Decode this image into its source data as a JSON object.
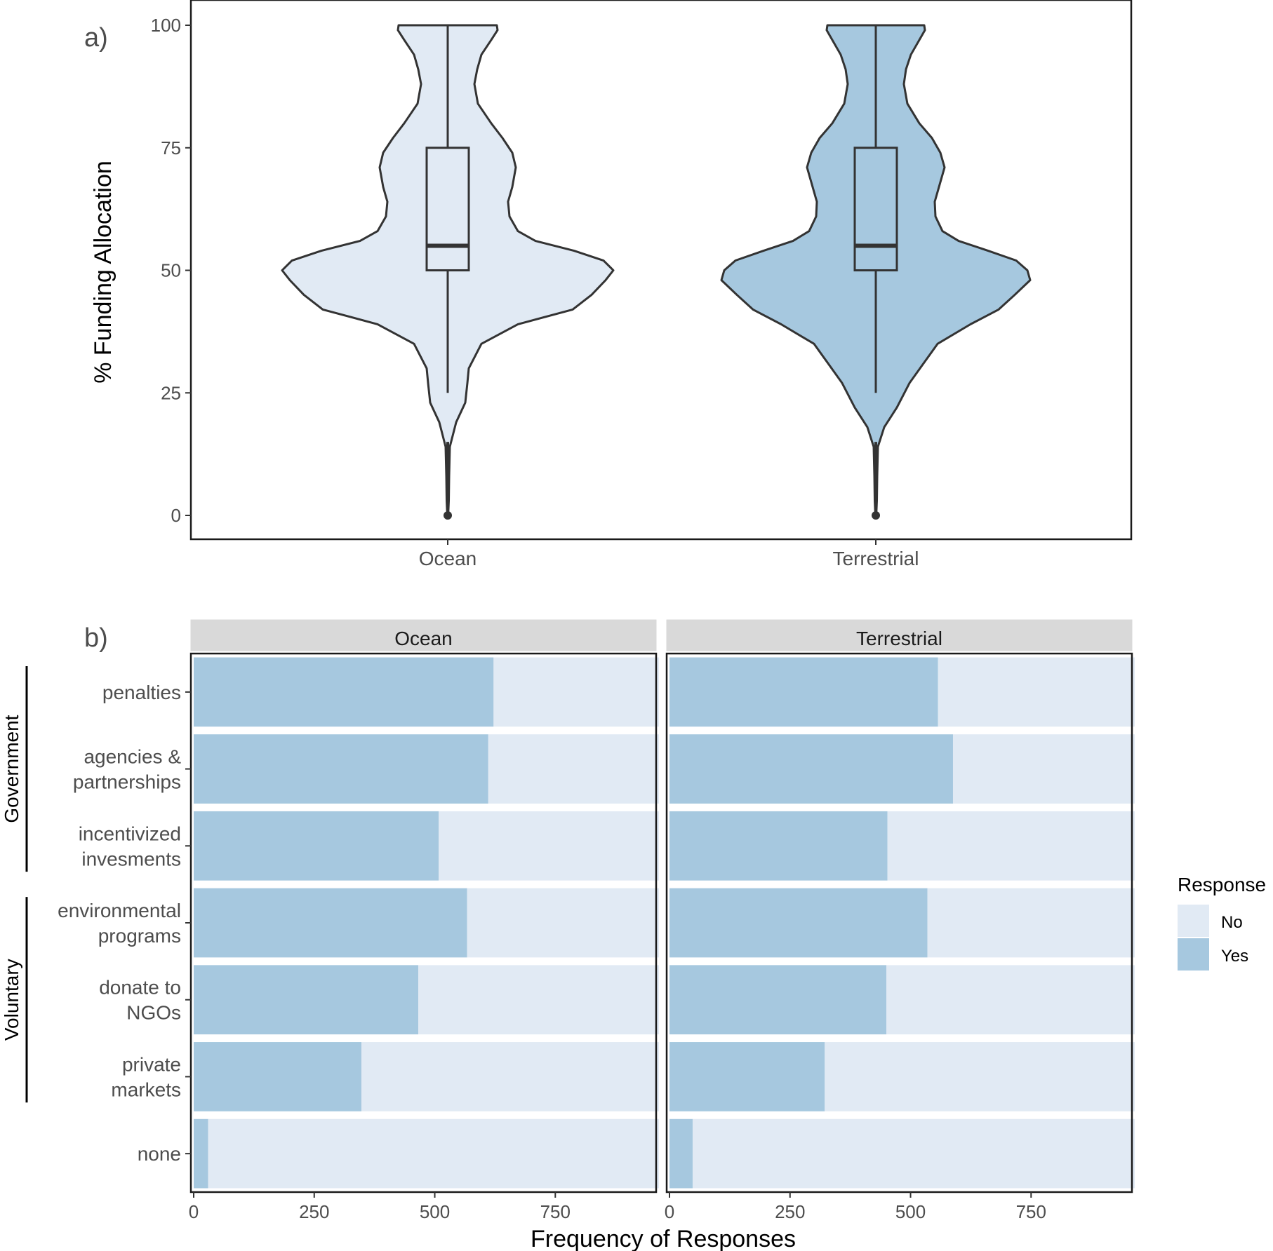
{
  "chart_data": [
    {
      "panel_label": "a)",
      "type": "violin",
      "ylabel": "% Funding Allocation",
      "ylim": [
        0,
        100
      ],
      "yticks": [
        0,
        25,
        50,
        75,
        100
      ],
      "categories": [
        "Ocean",
        "Terrestrial"
      ],
      "series": [
        {
          "name": "Ocean",
          "fill": "#E1EAF4",
          "box": {
            "min": 25,
            "q1": 50,
            "median": 55,
            "q3": 75,
            "max": 100
          },
          "outlier_segment": [
            0,
            15
          ],
          "density_profile": [
            {
              "y": 0,
              "hw": 0.6
            },
            {
              "y": 3,
              "hw": 1.5
            },
            {
              "y": 8,
              "hw": 2
            },
            {
              "y": 14,
              "hw": 3
            },
            {
              "y": 19,
              "hw": 12
            },
            {
              "y": 23,
              "hw": 25
            },
            {
              "y": 27,
              "hw": 28
            },
            {
              "y": 30,
              "hw": 30
            },
            {
              "y": 35,
              "hw": 48
            },
            {
              "y": 39,
              "hw": 100
            },
            {
              "y": 42,
              "hw": 178
            },
            {
              "y": 45,
              "hw": 205
            },
            {
              "y": 48,
              "hw": 225
            },
            {
              "y": 50,
              "hw": 236
            },
            {
              "y": 52,
              "hw": 222
            },
            {
              "y": 54,
              "hw": 180
            },
            {
              "y": 56,
              "hw": 125
            },
            {
              "y": 58,
              "hw": 100
            },
            {
              "y": 61,
              "hw": 88
            },
            {
              "y": 64,
              "hw": 86
            },
            {
              "y": 67,
              "hw": 92
            },
            {
              "y": 71,
              "hw": 97
            },
            {
              "y": 74,
              "hw": 92
            },
            {
              "y": 77,
              "hw": 78
            },
            {
              "y": 80,
              "hw": 62
            },
            {
              "y": 84,
              "hw": 43
            },
            {
              "y": 88,
              "hw": 38
            },
            {
              "y": 91,
              "hw": 42
            },
            {
              "y": 94,
              "hw": 48
            },
            {
              "y": 97,
              "hw": 62
            },
            {
              "y": 99,
              "hw": 71
            },
            {
              "y": 100,
              "hw": 70
            }
          ]
        },
        {
          "name": "Terrestrial",
          "fill": "#A6C8DF",
          "box": {
            "min": 25,
            "q1": 50,
            "median": 55,
            "q3": 75,
            "max": 100
          },
          "outlier_segment": [
            0,
            15
          ],
          "density_profile": [
            {
              "y": 0,
              "hw": 0.6
            },
            {
              "y": 3,
              "hw": 1.5
            },
            {
              "y": 8,
              "hw": 2
            },
            {
              "y": 14,
              "hw": 3
            },
            {
              "y": 18,
              "hw": 12
            },
            {
              "y": 22,
              "hw": 30
            },
            {
              "y": 27,
              "hw": 48
            },
            {
              "y": 31,
              "hw": 68
            },
            {
              "y": 35,
              "hw": 88
            },
            {
              "y": 39,
              "hw": 135
            },
            {
              "y": 42,
              "hw": 175
            },
            {
              "y": 45,
              "hw": 198
            },
            {
              "y": 48,
              "hw": 220
            },
            {
              "y": 50,
              "hw": 216
            },
            {
              "y": 52,
              "hw": 200
            },
            {
              "y": 54,
              "hw": 160
            },
            {
              "y": 56,
              "hw": 118
            },
            {
              "y": 58,
              "hw": 95
            },
            {
              "y": 61,
              "hw": 85
            },
            {
              "y": 64,
              "hw": 84
            },
            {
              "y": 67,
              "hw": 90
            },
            {
              "y": 71,
              "hw": 98
            },
            {
              "y": 74,
              "hw": 92
            },
            {
              "y": 77,
              "hw": 80
            },
            {
              "y": 80,
              "hw": 62
            },
            {
              "y": 84,
              "hw": 45
            },
            {
              "y": 88,
              "hw": 40
            },
            {
              "y": 91,
              "hw": 43
            },
            {
              "y": 94,
              "hw": 50
            },
            {
              "y": 97,
              "hw": 62
            },
            {
              "y": 99,
              "hw": 70
            },
            {
              "y": 100,
              "hw": 69
            }
          ]
        }
      ]
    },
    {
      "panel_label": "b)",
      "type": "stacked_bar_horizontal",
      "xlabel": "Frequency of Responses",
      "xlim": [
        0,
        965
      ],
      "xticks": [
        0,
        250,
        500,
        750
      ],
      "facets": [
        "Ocean",
        "Terrestrial"
      ],
      "categories": [
        "penalties",
        "agencies &\npartnerships",
        "incentivized\ninvesments",
        "environmental\nprograms",
        "donate to\nNGOs",
        "private\nmarkets",
        "none"
      ],
      "groups": [
        {
          "label": "Government",
          "categories": [
            "penalties",
            "agencies & partnerships",
            "incentivized invesments"
          ]
        },
        {
          "label": "Voluntary",
          "categories": [
            "environmental programs",
            "donate to NGOs",
            "private markets"
          ]
        }
      ],
      "total": 965,
      "series": [
        {
          "name": "Yes",
          "color": "#A6C8DF",
          "values": {
            "Ocean": [
              622,
              611,
              508,
              567,
              466,
              348,
              30
            ],
            "Terrestrial": [
              557,
              588,
              452,
              535,
              450,
              322,
              48
            ]
          }
        },
        {
          "name": "No",
          "color": "#E1EAF4",
          "values": {
            "Ocean": [
              343,
              354,
              457,
              398,
              499,
              617,
              935
            ],
            "Terrestrial": [
              408,
              377,
              513,
              430,
              515,
              643,
              917
            ]
          }
        }
      ],
      "legend": {
        "title": "Response",
        "entries": [
          "No",
          "Yes"
        ],
        "position": "right"
      }
    }
  ]
}
